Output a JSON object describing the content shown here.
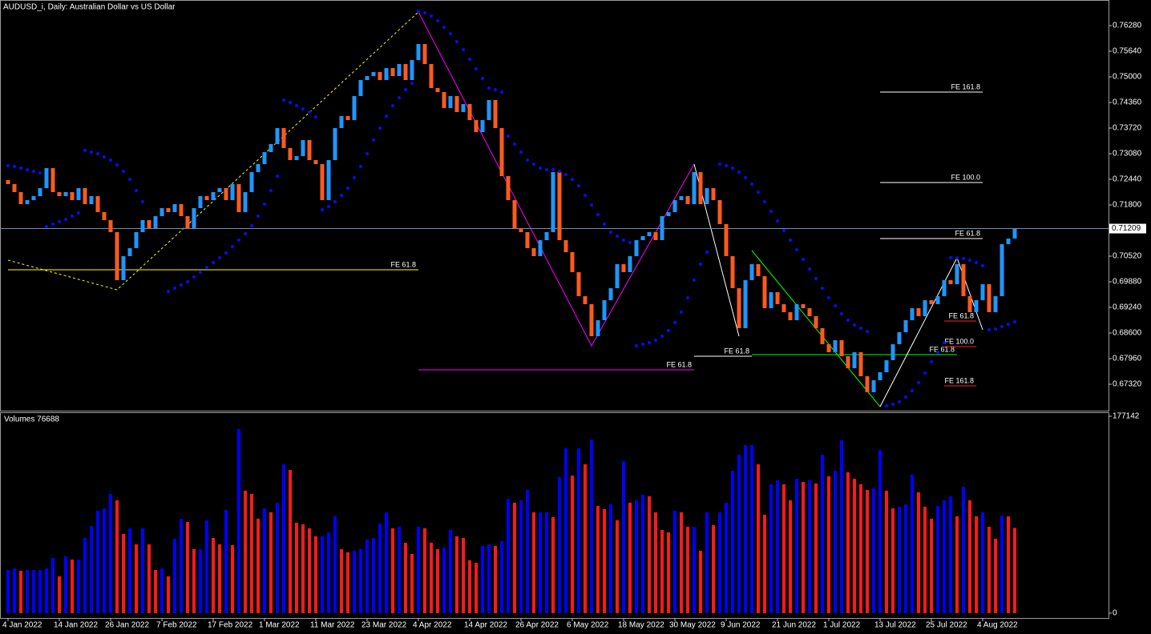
{
  "chart_data": [
    {
      "type": "candlestick",
      "title": "AUDUSD_i, Daily:  Australian Dollar vs US Dollar",
      "categories": [
        "4 Jan 2022",
        null,
        null,
        null,
        null,
        null,
        null,
        null,
        "14 Jan 2022",
        null,
        null,
        null,
        null,
        null,
        null,
        null,
        "26 Jan 2022",
        null,
        null,
        null,
        null,
        null,
        null,
        null,
        "7 Feb 2022",
        null,
        null,
        null,
        null,
        null,
        null,
        null,
        "17 Feb 2022",
        null,
        null,
        null,
        null,
        null,
        null,
        null,
        "1 Mar 2022",
        null,
        null,
        null,
        null,
        null,
        null,
        null,
        "11 Mar 2022",
        null,
        null,
        null,
        null,
        null,
        null,
        null,
        "23 Mar 2022",
        null,
        null,
        null,
        null,
        null,
        null,
        null,
        "4 Apr 2022",
        null,
        null,
        null,
        null,
        null,
        null,
        null,
        "14 Apr 2022",
        null,
        null,
        null,
        null,
        null,
        null,
        null,
        "26 Apr 2022",
        null,
        null,
        null,
        null,
        null,
        null,
        null,
        "6 May 2022",
        null,
        null,
        null,
        null,
        null,
        null,
        null,
        "18 May 2022",
        null,
        null,
        null,
        null,
        null,
        null,
        null,
        "30 May 2022",
        null,
        null,
        null,
        null,
        null,
        null,
        null,
        "9 Jun 2022",
        null,
        null,
        null,
        null,
        null,
        null,
        null,
        "21 Jun 2022",
        null,
        null,
        null,
        null,
        null,
        null,
        null,
        "1 Jul 2022",
        null,
        null,
        null,
        null,
        null,
        null,
        null,
        "13 Jul 2022",
        null,
        null,
        null,
        null,
        null,
        null,
        null,
        "25 Jul 2022",
        null,
        null,
        null,
        null,
        null,
        null,
        null,
        "4 Aug 2022",
        null,
        null,
        null,
        null,
        null
      ],
      "open": [
        0.7242,
        0.7232,
        0.7212,
        0.7182,
        0.7192,
        0.7202,
        0.7222,
        0.7272,
        0.7212,
        0.7202,
        0.7212,
        0.7192,
        0.7222,
        0.7182,
        0.7202,
        0.7162,
        0.7142,
        0.7112,
        0.6992,
        0.7052,
        0.7072,
        0.7112,
        0.7142,
        0.7122,
        0.7152,
        0.7172,
        0.7162,
        0.7182,
        0.7152,
        0.7122,
        0.7172,
        0.7202,
        0.7192,
        0.7212,
        0.7222,
        0.7192,
        0.7232,
        0.7162,
        0.7212,
        0.7262,
        0.7282,
        0.7312,
        0.7332,
        0.7372,
        0.7322,
        0.7292,
        0.7302,
        0.7342,
        0.7292,
        0.7282,
        0.7192,
        0.7292,
        0.7372,
        0.7402,
        0.7392,
        0.7452,
        0.7492,
        0.7502,
        0.7512,
        0.7492,
        0.7522,
        0.7502,
        0.7532,
        0.7492,
        0.7542,
        0.7582,
        0.7532,
        0.7472,
        0.7462,
        0.7422,
        0.7452,
        0.7412,
        0.7432,
        0.7392,
        0.7362,
        0.7392,
        0.7442,
        0.7372,
        0.7252,
        0.7192,
        0.7122,
        0.7112,
        0.7072,
        0.7052,
        0.7092,
        0.7112,
        0.7262,
        0.7092,
        0.7062,
        0.7012,
        0.6952,
        0.6932,
        0.6852,
        0.6892,
        0.6942,
        0.6972,
        0.7032,
        0.7012,
        0.7052,
        0.7092,
        0.7102,
        0.7112,
        0.7092,
        0.7152,
        0.7162,
        0.7192,
        0.7202,
        0.7182,
        0.7262,
        0.7182,
        0.7222,
        0.7192,
        0.7132,
        0.7052,
        0.6972,
        0.6872,
        0.6992,
        0.7032,
        0.7002,
        0.6922,
        0.6962,
        0.6932,
        0.6912,
        0.6892,
        0.6932,
        0.6922,
        0.6902,
        0.6872,
        0.6832,
        0.6812,
        0.6842,
        0.6802,
        0.6772,
        0.6812,
        0.6752,
        0.6712,
        0.6742,
        0.6762,
        0.6792,
        0.6832,
        0.6862,
        0.6892,
        0.6922,
        0.6902,
        0.6942,
        0.6932,
        0.6952,
        0.6992,
        0.6982,
        0.7032,
        0.6952,
        0.6912,
        0.6942,
        0.6982,
        0.6912,
        0.6952,
        0.7082,
        0.7096
      ],
      "close": [
        0.7232,
        0.7212,
        0.7182,
        0.7192,
        0.7202,
        0.7222,
        0.7272,
        0.7212,
        0.7202,
        0.7212,
        0.7192,
        0.7222,
        0.7182,
        0.7202,
        0.7162,
        0.7142,
        0.7112,
        0.6992,
        0.7052,
        0.7072,
        0.7112,
        0.7142,
        0.7122,
        0.7152,
        0.7172,
        0.7162,
        0.7182,
        0.7152,
        0.7122,
        0.7172,
        0.7202,
        0.7192,
        0.7212,
        0.7222,
        0.7192,
        0.7232,
        0.7162,
        0.7212,
        0.7262,
        0.7282,
        0.7312,
        0.7332,
        0.7372,
        0.7322,
        0.7292,
        0.7302,
        0.7342,
        0.7292,
        0.7282,
        0.7192,
        0.7292,
        0.7372,
        0.7402,
        0.7392,
        0.7452,
        0.7492,
        0.7502,
        0.7512,
        0.7492,
        0.7522,
        0.7502,
        0.7532,
        0.7492,
        0.7542,
        0.7582,
        0.7532,
        0.7472,
        0.7462,
        0.7422,
        0.7452,
        0.7412,
        0.7432,
        0.7392,
        0.7362,
        0.7392,
        0.7442,
        0.7372,
        0.7252,
        0.7192,
        0.7122,
        0.7112,
        0.7072,
        0.7052,
        0.7092,
        0.7112,
        0.7262,
        0.7092,
        0.7062,
        0.7012,
        0.6952,
        0.6932,
        0.6852,
        0.6892,
        0.6942,
        0.6972,
        0.7032,
        0.7012,
        0.7052,
        0.7092,
        0.7102,
        0.7112,
        0.7092,
        0.7152,
        0.7162,
        0.7192,
        0.7202,
        0.7182,
        0.7262,
        0.7182,
        0.7222,
        0.7192,
        0.7132,
        0.7052,
        0.6972,
        0.6872,
        0.6992,
        0.7032,
        0.7002,
        0.6922,
        0.6962,
        0.6932,
        0.6912,
        0.6892,
        0.6932,
        0.6922,
        0.6902,
        0.6872,
        0.6832,
        0.6812,
        0.6842,
        0.6802,
        0.6772,
        0.6812,
        0.6752,
        0.6712,
        0.6742,
        0.6762,
        0.6792,
        0.6832,
        0.6862,
        0.6892,
        0.6922,
        0.6902,
        0.6942,
        0.6932,
        0.6952,
        0.6992,
        0.6982,
        0.7032,
        0.6952,
        0.6912,
        0.6942,
        0.6982,
        0.6912,
        0.6952,
        0.7082,
        0.7096,
        0.71209
      ],
      "up_color": "#1e96ff",
      "down_color": "#ff5a1e",
      "current_price_color": "#6f8fb0",
      "ylim": [
        0.6668,
        0.7692
      ],
      "yticks": [
        {
          "value": 0.7628,
          "label": "0.76280"
        },
        {
          "value": 0.7564,
          "label": "0.75640"
        },
        {
          "value": 0.75,
          "label": "0.75000"
        },
        {
          "value": 0.7436,
          "label": "0.74360"
        },
        {
          "value": 0.7372,
          "label": "0.73720"
        },
        {
          "value": 0.7308,
          "label": "0.73080"
        },
        {
          "value": 0.7244,
          "label": "0.72440"
        },
        {
          "value": 0.718,
          "label": "0.71800"
        },
        {
          "value": 0.7052,
          "label": "0.70520"
        },
        {
          "value": 0.6988,
          "label": "0.69880"
        },
        {
          "value": 0.6924,
          "label": "0.69240"
        },
        {
          "value": 0.686,
          "label": "0.68600"
        },
        {
          "value": 0.6796,
          "label": "0.67960"
        },
        {
          "value": 0.6732,
          "label": "0.67320"
        }
      ],
      "sar": {
        "color": "#0a0aff",
        "values": [
          0.7278,
          0.7276,
          0.7272,
          0.7268,
          0.7264,
          0.726,
          0.7126,
          0.7132,
          0.7138,
          0.7144,
          0.7152,
          0.716,
          0.7316,
          0.7312,
          0.7308,
          0.73,
          0.7292,
          0.728,
          0.7264,
          0.7244,
          0.7216,
          0.7188,
          null,
          null,
          null,
          0.6964,
          0.6972,
          0.698,
          0.6988,
          0.7,
          0.7012,
          0.7024,
          0.7036,
          0.7048,
          0.706,
          0.7076,
          0.7092,
          0.7108,
          0.7128,
          0.7152,
          0.7182,
          0.7216,
          0.7252,
          0.7442,
          0.7436,
          0.7428,
          0.742,
          0.7412,
          0.74,
          0.7168,
          0.7176,
          0.7188,
          0.7204,
          0.7222,
          0.7248,
          0.7276,
          0.7308,
          0.7342,
          0.7372,
          0.7402,
          0.7428,
          0.7448,
          0.7468,
          0.7484,
          0.7664,
          0.766,
          0.7652,
          0.764,
          0.7624,
          0.7608,
          0.7588,
          0.7568,
          0.7544,
          0.752,
          0.7496,
          0.7472,
          0.7468,
          0.7462,
          0.7352,
          0.7332,
          0.7312,
          0.7292,
          0.7282,
          0.7272,
          0.7268,
          0.7268,
          0.7264,
          0.7256,
          0.7244,
          0.7228,
          0.7204,
          0.718,
          0.7156,
          0.7132,
          0.7112,
          0.7102,
          0.7092,
          0.7086,
          0.6828,
          0.6832,
          0.6836,
          0.6842,
          0.6852,
          0.6866,
          0.6886,
          0.6912,
          0.6948,
          0.6992,
          0.7032,
          0.7062,
          null,
          0.7282,
          0.7278,
          0.7272,
          0.7262,
          0.7248,
          0.7232,
          0.7212,
          0.7188,
          0.7164,
          0.714,
          0.7116,
          0.7092,
          0.7068,
          0.7044,
          0.702,
          0.6996,
          0.6972,
          0.6948,
          0.6928,
          0.6908,
          0.6892,
          0.688,
          0.6872,
          0.6864,
          null,
          null,
          0.6678,
          0.6682,
          0.6688,
          0.67,
          0.6716,
          0.6736,
          0.676,
          0.6788,
          0.6812,
          0.6836,
          0.7048,
          0.7048,
          0.7046,
          0.7042,
          0.7036,
          0.7028,
          0.6868,
          0.687,
          0.6876,
          0.6882,
          0.6888
        ]
      },
      "levels": [
        {
          "label": "FE 61.8",
          "color": "#ffff00",
          "value": 0.7018,
          "from": 0,
          "to": 64
        },
        {
          "label": "FE 61.8",
          "color": "#ff00ff",
          "value": 0.6768,
          "from": 64,
          "to": 107
        },
        {
          "label": "FE 61.8",
          "color": "#ffffff",
          "value": 0.6802,
          "from": 107,
          "to": 116
        },
        {
          "label": "FE 61.8",
          "color": "#00ff00",
          "value": 0.6806,
          "from": 116,
          "to": 148
        },
        {
          "label": "FE 161.8",
          "color": "#ffffff",
          "value": 0.7462,
          "from": 136,
          "to": 152
        },
        {
          "label": "FE 100.0",
          "color": "#ffffff",
          "value": 0.7236,
          "from": 136,
          "to": 152
        },
        {
          "label": "FE 61.8",
          "color": "#ffffff",
          "value": 0.7096,
          "from": 136,
          "to": 152
        },
        {
          "label": "FE 61.8",
          "color": "#ff2020",
          "value": 0.689,
          "from": 146,
          "to": 151
        },
        {
          "label": "FE 100.0",
          "color": "#ff2020",
          "value": 0.6826,
          "from": 146,
          "to": 151
        },
        {
          "label": "FE 161.8",
          "color": "#ff2020",
          "value": 0.6728,
          "from": 146,
          "to": 151
        }
      ],
      "zigzags": [
        {
          "color": "#ffff00",
          "dashed": true,
          "points": [
            [
              0,
              0.7042
            ],
            [
              17,
              0.6968
            ],
            [
              64,
              0.7662
            ]
          ]
        },
        {
          "color": "#ff00ff",
          "dashed": false,
          "points": [
            [
              64,
              0.7662
            ],
            [
              91,
              0.6828
            ],
            [
              107,
              0.7282
            ]
          ]
        },
        {
          "color": "#ffffff",
          "dashed": false,
          "points": [
            [
              107,
              0.7282
            ],
            [
              114,
              0.6852
            ]
          ]
        },
        {
          "color": "#00ff00",
          "dashed": false,
          "points": [
            [
              116,
              0.7066
            ],
            [
              136,
              0.6676
            ]
          ]
        },
        {
          "color": "#ffffff",
          "dashed": false,
          "points": [
            [
              136,
              0.6676
            ],
            [
              148,
              0.7048
            ],
            [
              152,
              0.6868
            ]
          ]
        }
      ]
    },
    {
      "type": "volume",
      "title": "Volumes 76688",
      "values": [
        38880,
        40320,
        38160,
        38880,
        38880,
        38880,
        40320,
        49680,
        33120,
        51120,
        48240,
        48240,
        67680,
        78480,
        92160,
        94320,
        107280,
        101520,
        71280,
        76320,
        61920,
        76320,
        61920,
        38880,
        40320,
        33120,
        66960,
        84960,
        82080,
        57600,
        57600,
        83520,
        67680,
        61920,
        92880,
        61200,
        165600,
        110160,
        107280,
        84960,
        94320,
        90720,
        99360,
        133920,
        128880,
        81360,
        79920,
        76320,
        69120,
        69120,
        72720,
        87120,
        57600,
        54720,
        56160,
        57600,
        66240,
        67680,
        80640,
        90720,
        76320,
        77760,
        63360,
        53280,
        77760,
        76320,
        63360,
        57600,
        59040,
        74880,
        69120,
        67680,
        47520,
        45360,
        60480,
        61920,
        60480,
        64800,
        102960,
        99360,
        101520,
        110880,
        90720,
        90720,
        90720,
        86400,
        122400,
        148320,
        123840,
        148320,
        133920,
        156240,
        96480,
        93600,
        97920,
        83520,
        136800,
        99360,
        101520,
        106560,
        105120,
        90720,
        74880,
        72720,
        92160,
        90720,
        77760,
        77760,
        56160,
        90720,
        79200,
        90720,
        99360,
        128160,
        142560,
        151200,
        151200,
        133920,
        88560,
        115920,
        119520,
        115920,
        101520,
        120960,
        118080,
        119520,
        116640,
        142560,
        123120,
        128160,
        155520,
        126720,
        120960,
        115920,
        110880,
        112320,
        146880,
        110160,
        94320,
        95760,
        97920,
        124560,
        108720,
        95760,
        84960,
        96480,
        101520,
        105120,
        87120,
        113760,
        101520,
        87120,
        90720,
        77760,
        66960,
        87840,
        87120,
        76688
      ],
      "up_color": "#0000ff",
      "down_color": "#ff1a1a",
      "ylim": [
        0,
        177142
      ],
      "yticks": [
        0,
        177142
      ]
    }
  ]
}
